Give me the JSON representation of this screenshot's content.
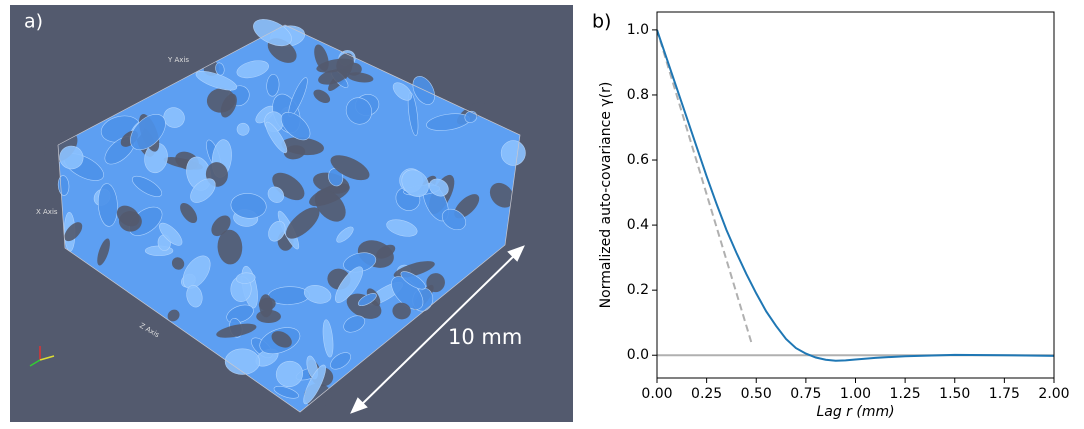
{
  "panel_a": {
    "label": "a)",
    "scale_text": "10 mm",
    "axis_names": [
      "Y Axis",
      "Z Axis",
      "X Axis"
    ]
  },
  "chart_data": {
    "type": "line",
    "panel_label": "b)",
    "x_label": "Lag r (mm)",
    "y_label": "Normalized auto-covariance γ(r)",
    "xlim": [
      0,
      2
    ],
    "ylim": [
      -0.07,
      1.055
    ],
    "xticks": [
      {
        "value": 0,
        "label": "0.00"
      },
      {
        "value": 0.25,
        "label": "0.25"
      },
      {
        "value": 0.5,
        "label": "0.50"
      },
      {
        "value": 0.75,
        "label": "0.75"
      },
      {
        "value": 1,
        "label": "1.00"
      },
      {
        "value": 1.25,
        "label": "1.25"
      },
      {
        "value": 1.5,
        "label": "1.50"
      },
      {
        "value": 1.75,
        "label": "1.75"
      },
      {
        "value": 2,
        "label": "2.00"
      }
    ],
    "yticks": [
      {
        "value": 0,
        "label": "0.0"
      },
      {
        "value": 0.2,
        "label": "0.2"
      },
      {
        "value": 0.4,
        "label": "0.4"
      },
      {
        "value": 0.6,
        "label": "0.6"
      },
      {
        "value": 0.8,
        "label": "0.8"
      },
      {
        "value": 1,
        "label": "1.0"
      }
    ],
    "series": [
      {
        "color": "#b0b0b0",
        "dash": false,
        "x": [
          0,
          2
        ],
        "values": [
          0,
          0
        ]
      },
      {
        "color": "#b0b0b0",
        "dash": true,
        "x": [
          0,
          0.48
        ],
        "values": [
          1,
          0.03
        ]
      },
      {
        "color": "#1f77b4",
        "dash": false,
        "x": [
          0,
          0.05,
          0.1,
          0.15,
          0.2,
          0.25,
          0.3,
          0.35,
          0.4,
          0.45,
          0.5,
          0.55,
          0.6,
          0.65,
          0.7,
          0.75,
          0.8,
          0.85,
          0.9,
          0.95,
          1.0,
          1.1,
          1.25,
          1.5,
          1.75,
          2.0
        ],
        "values": [
          1.0,
          0.91,
          0.82,
          0.73,
          0.64,
          0.55,
          0.465,
          0.385,
          0.315,
          0.25,
          0.19,
          0.135,
          0.09,
          0.05,
          0.022,
          0.005,
          -0.007,
          -0.014,
          -0.017,
          -0.016,
          -0.013,
          -0.008,
          -0.003,
          0.001,
          0,
          -0.002
        ]
      }
    ]
  }
}
